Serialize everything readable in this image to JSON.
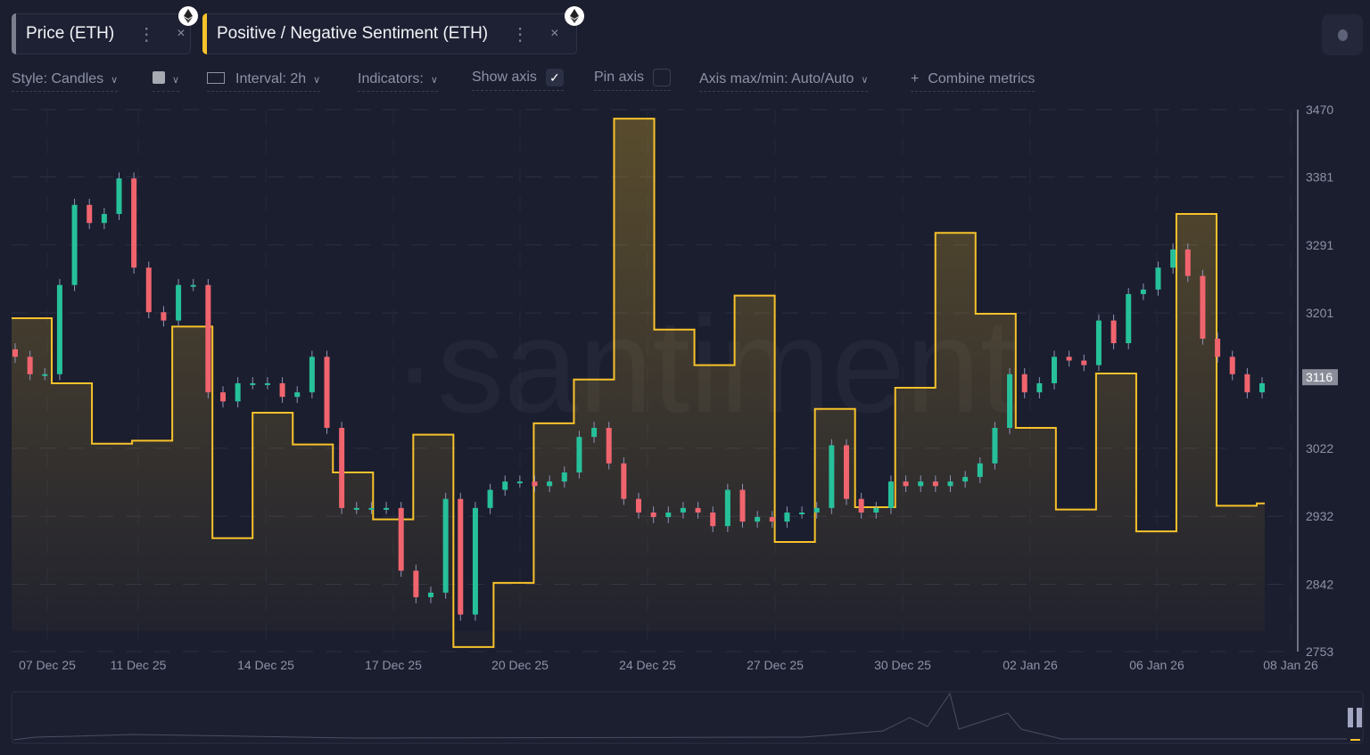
{
  "tabs": [
    {
      "label": "Price (ETH)",
      "color": "#7b7e8c",
      "menu": "⋮",
      "close": "×"
    },
    {
      "label": "Positive / Negative Sentiment (ETH)",
      "color": "#f8c22b",
      "menu": "⋮",
      "close": "×"
    }
  ],
  "toolbar": {
    "style": "Style: Candles",
    "interval": "Interval: 2h",
    "indicators": "Indicators:",
    "show_axis": "Show axis",
    "show_axis_checked": true,
    "pin_axis": "Pin axis",
    "pin_axis_checked": false,
    "axis_maxmin": "Axis max/min: Auto/Auto",
    "combine": "Combine metrics",
    "combine_icon": "plus-icon"
  },
  "watermark": "·santiment",
  "chart_data": {
    "type": "candlestick+step-area",
    "y_ticks": [
      "3470",
      "3381",
      "3291",
      "3201",
      "3116",
      "3022",
      "2932",
      "2842",
      "2753"
    ],
    "ylim": [
      2753,
      3470
    ],
    "current_price": "3116",
    "x_ticks": [
      "07 Dec 25",
      "11 Dec 25",
      "14 Dec 25",
      "17 Dec 25",
      "20 Dec 25",
      "24 Dec 25",
      "27 Dec 25",
      "30 Dec 25",
      "02 Jan 26",
      "06 Jan 26",
      "08 Jan 26"
    ],
    "grid": true,
    "colors": {
      "up": "#26c19a",
      "down": "#f0646e",
      "wick": "#8e93b8",
      "sentiment": "#f8c22b"
    },
    "price_close": [
      3143,
      3120,
      3120,
      3238,
      3344,
      3320,
      3332,
      3379,
      3261,
      3202,
      3191,
      3238,
      3238,
      3096,
      3084,
      3108,
      3108,
      3108,
      3090,
      3096,
      3143,
      3049,
      2943,
      2943,
      2943,
      2943,
      2860,
      2825,
      2831,
      2955,
      2802,
      2943,
      2967,
      2978,
      2978,
      2972,
      2978,
      2990,
      3037,
      3049,
      3002,
      2955,
      2937,
      2931,
      2937,
      2943,
      2937,
      2919,
      2967,
      2925,
      2931,
      2925,
      2937,
      2937,
      2943,
      3026,
      2955,
      2937,
      2943,
      2978,
      2972,
      2978,
      2972,
      2978,
      2984,
      3002,
      3049,
      3120,
      3096,
      3108,
      3143,
      3138,
      3132,
      3191,
      3161,
      3226,
      3232,
      3261,
      3285,
      3250,
      3167,
      3143,
      3120,
      3096,
      3108
    ],
    "sentiment": [
      3194,
      3108,
      3028,
      3032,
      3183,
      2903,
      3069,
      3027,
      2990,
      2928,
      3040,
      2759,
      2844,
      3055,
      3113,
      3458,
      3179,
      3132,
      3224,
      2898,
      3074,
      2944,
      3102,
      3307,
      3200,
      3049,
      2941,
      3121,
      2912,
      3332,
      2946,
      2949
    ]
  }
}
